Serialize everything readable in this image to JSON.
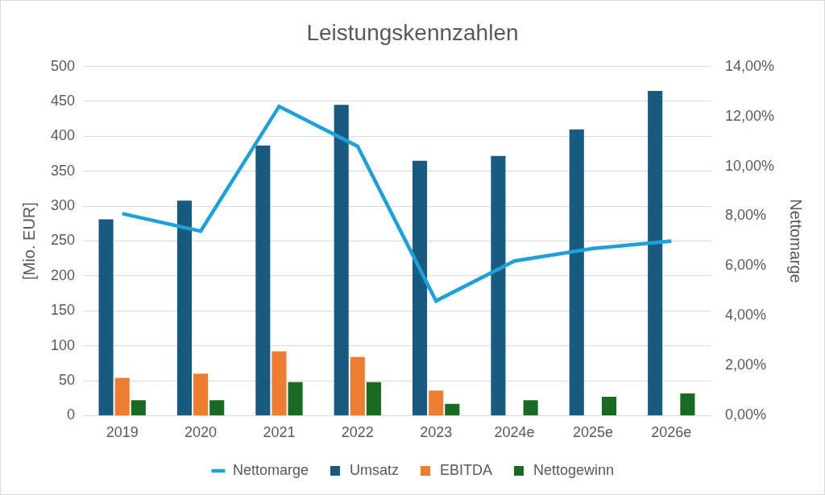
{
  "chart_data": {
    "type": "bar",
    "title": "Leistungskennzahlen",
    "categories": [
      "2019",
      "2020",
      "2021",
      "2022",
      "2023",
      "2024e",
      "2025e",
      "2026e"
    ],
    "series": [
      {
        "name": "Umsatz",
        "color": "#195b80",
        "values": [
          281,
          308,
          387,
          445,
          365,
          372,
          410,
          465
        ]
      },
      {
        "name": "EBITDA",
        "color": "#ed7d31",
        "values": [
          54,
          60,
          92,
          84,
          36,
          null,
          null,
          null
        ]
      },
      {
        "name": "Nettogewinn",
        "color": "#196b24",
        "values": [
          22,
          22,
          48,
          48,
          17,
          22,
          27,
          32
        ]
      },
      {
        "name": "Nettomarge",
        "type": "line",
        "axis": "y2",
        "color": "#1fa0d8",
        "marker": "none",
        "line_style": "solid",
        "values": [
          8.1,
          7.4,
          12.4,
          10.8,
          4.6,
          6.2,
          6.7,
          7.0
        ]
      }
    ],
    "ylabel": "[Mio. EUR]",
    "y2label": "Nettomarge",
    "ylim": [
      0,
      500
    ],
    "yticks": [
      0,
      50,
      100,
      150,
      200,
      250,
      300,
      350,
      400,
      450,
      500
    ],
    "y2lim": [
      0,
      14
    ],
    "y2ticks": [
      {
        "value": 0,
        "label": "0,00%"
      },
      {
        "value": 2,
        "label": "2,00%"
      },
      {
        "value": 4,
        "label": "4,00%"
      },
      {
        "value": 6,
        "label": "6,00%"
      },
      {
        "value": 8,
        "label": "8,00%"
      },
      {
        "value": 10,
        "label": "10,00%"
      },
      {
        "value": 12,
        "label": "12,00%"
      },
      {
        "value": 14,
        "label": "14,00%"
      }
    ],
    "grid": true,
    "legend": "bottom"
  }
}
